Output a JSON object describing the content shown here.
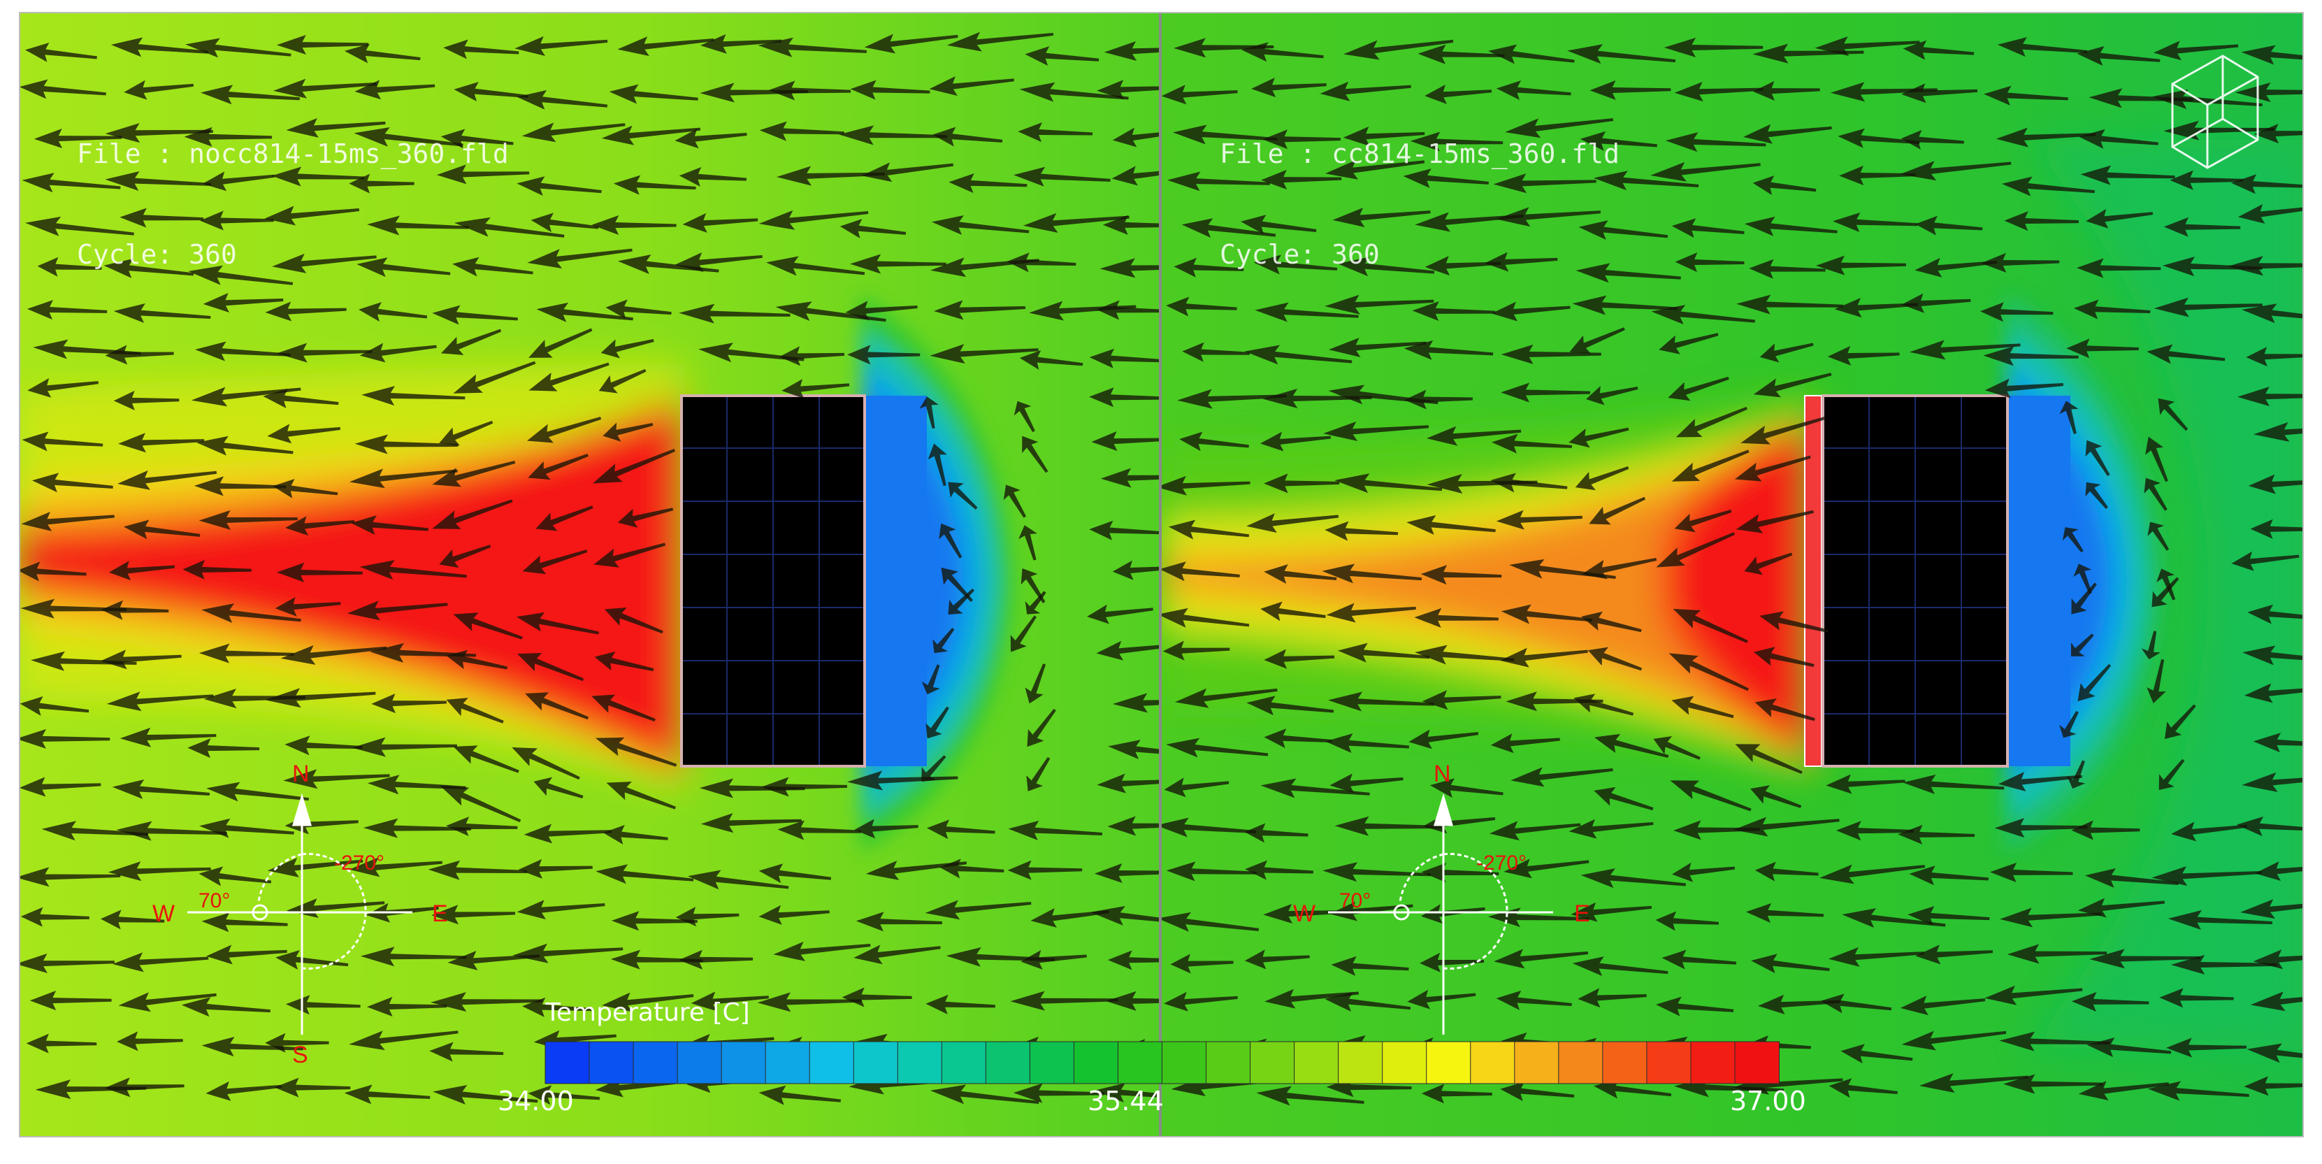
{
  "colors": {
    "ambient_left": "#8fe21c",
    "ambient_right": "#2fc32a",
    "hot": "#f51515",
    "cold": "#1578f0",
    "building": "#000000",
    "divider": "#8a8a8a"
  },
  "panels": [
    {
      "file_line": "File : nocc814-15ms_360.fld",
      "cycle_line": "Cycle: 360"
    },
    {
      "file_line": "File : cc814-15ms_360.fld",
      "cycle_line": "Cycle: 360"
    }
  ],
  "compass": {
    "north": "N",
    "south": "S",
    "east": "E",
    "west": "W",
    "angle_left": "70°",
    "angle_right": "-270°"
  },
  "legend": {
    "title": "Temperature [C]",
    "min_label": "34.00",
    "mid_label": "35.44",
    "max_label": "37.00",
    "colors": [
      "#0a3cf5",
      "#0a52f2",
      "#0a66ee",
      "#0c7cea",
      "#0e92e8",
      "#0fa8e6",
      "#10bfe8",
      "#0dc6cc",
      "#0bc9b0",
      "#0ac690",
      "#0bc470",
      "#0dc24f",
      "#14c230",
      "#28c41f",
      "#3dc61a",
      "#58cc16",
      "#76d414",
      "#98dc12",
      "#bce410",
      "#e0ee0e",
      "#f6f510",
      "#f6d616",
      "#f5b01a",
      "#f4881a",
      "#f46218",
      "#f43c16",
      "#f21e14",
      "#f01212"
    ]
  },
  "icons": {
    "logo": "wireframe-cube-icon",
    "vector": "wind-arrow-icon"
  }
}
